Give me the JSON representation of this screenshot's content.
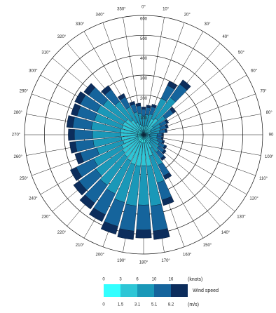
{
  "chart_data": {
    "type": "windrose",
    "categories": [
      "0°",
      "10°",
      "20°",
      "30°",
      "40°",
      "50°",
      "60°",
      "70°",
      "80°",
      "90",
      "100°",
      "110°",
      "120°",
      "130°",
      "140°",
      "150°",
      "160°",
      "170°",
      "180°",
      "190°",
      "200°",
      "210°",
      "220°",
      "230°",
      "240°",
      "250°",
      "260°",
      "270°",
      "280°",
      "290°",
      "300°",
      "310°",
      "320°",
      "330°",
      "340°",
      "350°"
    ],
    "series": [
      {
        "color": "#33ffff",
        "values": [
          11,
          12,
          13,
          24,
          27,
          16,
          11,
          10,
          10,
          8,
          8,
          9,
          10,
          11,
          13,
          20,
          30,
          42,
          42,
          42,
          42,
          39,
          37,
          35,
          33,
          29,
          30,
          30,
          31,
          30,
          31,
          30,
          24,
          18,
          14,
          13
        ]
      },
      {
        "color": "#2ec6d6",
        "values": [
          31,
          33,
          35,
          66,
          75,
          44,
          31,
          29,
          26,
          22,
          22,
          24,
          29,
          31,
          35,
          55,
          81,
          117,
          114,
          117,
          114,
          107,
          101,
          96,
          90,
          79,
          83,
          84,
          86,
          84,
          85,
          81,
          67,
          51,
          39,
          35
        ]
      },
      {
        "color": "#1a98b8",
        "values": [
          53,
          57,
          61,
          114,
          129,
          76,
          53,
          49,
          46,
          38,
          38,
          42,
          49,
          53,
          61,
          95,
          141,
          201,
          198,
          201,
          198,
          184,
          175,
          165,
          156,
          137,
          143,
          144,
          148,
          144,
          146,
          141,
          116,
          87,
          66,
          61
        ]
      },
      {
        "color": "#15649c",
        "values": [
          34,
          36,
          38,
          72,
          82,
          48,
          34,
          31,
          29,
          24,
          24,
          26,
          31,
          34,
          38,
          60,
          89,
          127,
          125,
          127,
          125,
          116,
          110,
          104,
          98,
          86,
          90,
          91,
          94,
          91,
          92,
          89,
          73,
          55,
          42,
          38
        ]
      },
      {
        "color": "#0c2d5c",
        "values": [
          11,
          12,
          13,
          24,
          27,
          16,
          11,
          11,
          9,
          8,
          8,
          9,
          11,
          11,
          13,
          20,
          29,
          43,
          41,
          43,
          41,
          39,
          37,
          35,
          33,
          29,
          29,
          31,
          31,
          31,
          31,
          29,
          25,
          19,
          14,
          13
        ]
      }
    ],
    "rlim": [
      0,
      600
    ],
    "rticks": [
      100,
      200,
      300,
      400,
      500,
      600
    ],
    "grid": true,
    "legend": {
      "title": "Wind speed",
      "knots": [
        0,
        3,
        6,
        10,
        16
      ],
      "knots_unit": "(knots)",
      "ms": [
        0,
        1.5,
        3.1,
        5.1,
        8.2
      ],
      "ms_unit": "(m/s)"
    }
  }
}
